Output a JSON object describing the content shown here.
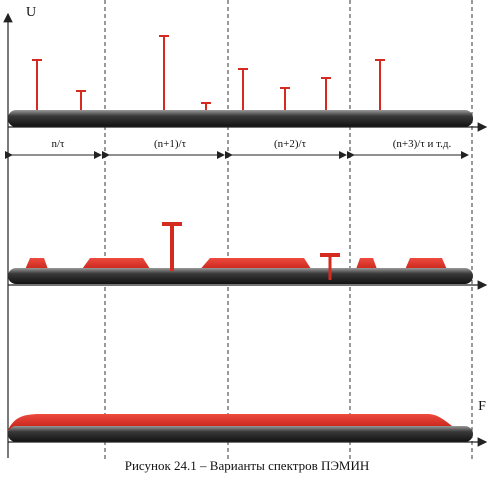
{
  "axis_labels": {
    "y": "U",
    "x": "F"
  },
  "intervals": [
    "n/τ",
    "(n+1)/τ",
    "(n+2)/τ",
    "(n+3)/τ и т.д."
  ],
  "caption": "Рисунок 24.1 – Варианты спектров ПЭМИН",
  "colors": {
    "signal": "#d42a20",
    "axis": "#222222",
    "bar": "#2a2a2a"
  }
}
